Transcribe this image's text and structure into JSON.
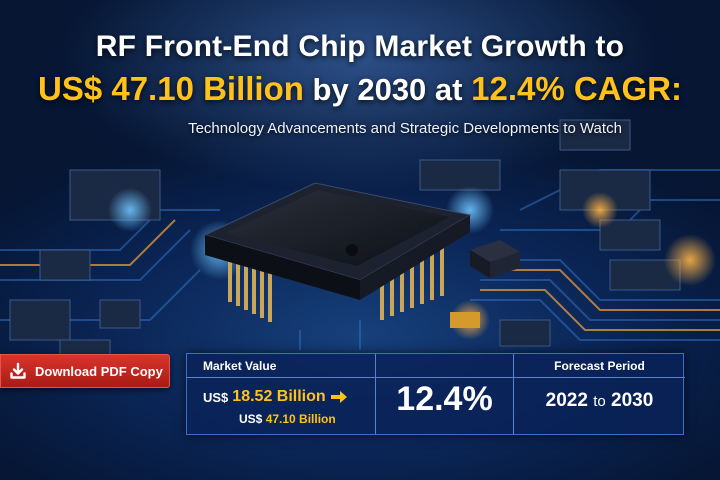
{
  "headline": {
    "line1": "RF Front-End Chip Market Growth to",
    "value": "US$ 47.10 Billion",
    "mid": "by 2030 at",
    "cagr": "12.4% CAGR:",
    "subtitle": "Technology Advancements and Strategic Developments to Watch"
  },
  "download": {
    "label": "Download PDF Copy",
    "icon": "download-icon"
  },
  "stats": {
    "market_value_header": "Market Value",
    "mv_prefix": "US$",
    "mv_start": "18.52 Billion",
    "mv_end_prefix": "US$",
    "mv_end": "47.10 Billion",
    "cagr_value": "12.4%",
    "forecast_header": "Forecast Period",
    "period_from": "2022",
    "period_to_word": "to",
    "period_to": "2030"
  },
  "colors": {
    "accent_gold": "#ffc21a",
    "button_red": "#c8281f",
    "panel_blue": "#0a2258"
  }
}
